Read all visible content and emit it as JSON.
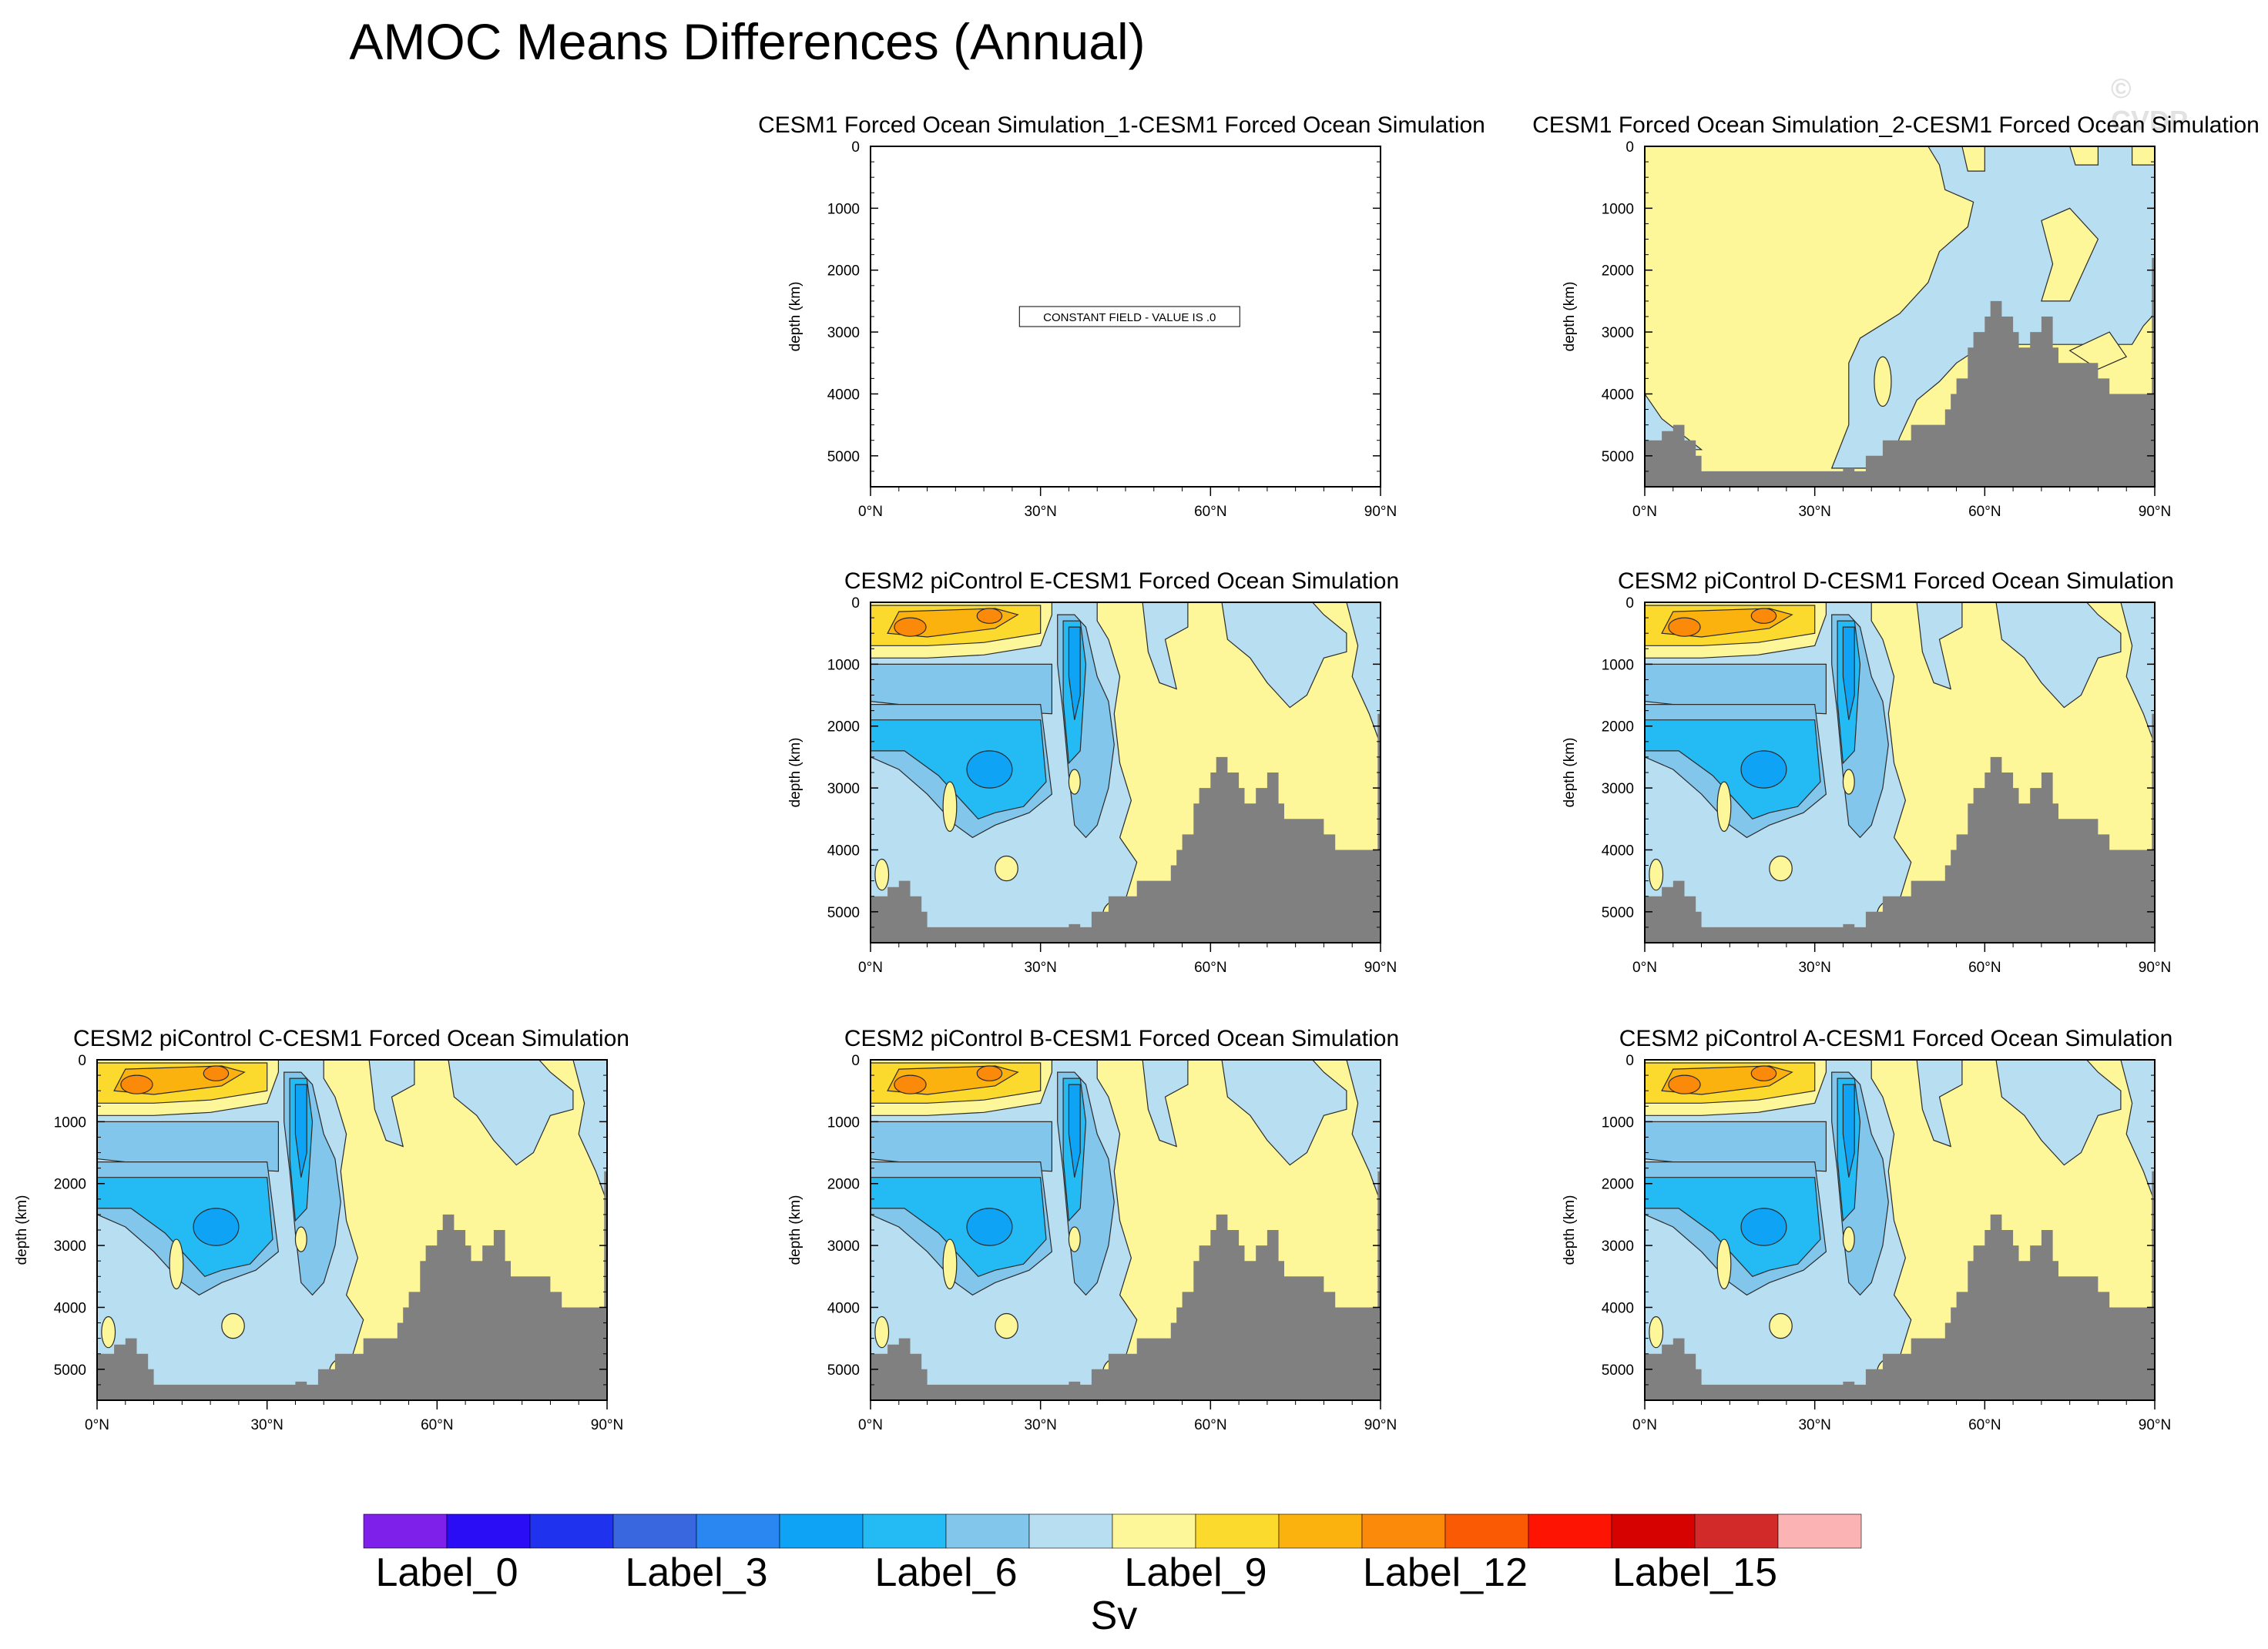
{
  "figure": {
    "title": "AMOC Means Differences (Annual)",
    "watermark": "© CVDP"
  },
  "chart_data": [
    {
      "type": "heatmap",
      "title": "CESM1 Forced Ocean Simulation_1-CESM1 Forced Ocean Simulation",
      "xlabel": "",
      "ylabel": "depth (km)",
      "xticks": [
        "0°N",
        "30°N",
        "60°N",
        "90°N"
      ],
      "yticks": [
        "0",
        "1000",
        "2000",
        "3000",
        "4000",
        "5000"
      ],
      "xlim": [
        0,
        90
      ],
      "ylim": [
        5500,
        0
      ],
      "constant_field": true,
      "annotation": "CONSTANT FIELD - VALUE IS .0"
    },
    {
      "type": "heatmap",
      "title": "CESM1 Forced Ocean Simulation_2-CESM1 Forced Ocean Simulation",
      "xlabel": "",
      "ylabel": "depth (km)",
      "xticks": [
        "0°N",
        "30°N",
        "60°N",
        "90°N"
      ],
      "yticks": [
        "0",
        "1000",
        "2000",
        "3000",
        "4000",
        "5000"
      ],
      "xlim": [
        0,
        90
      ],
      "ylim": [
        5500,
        0
      ],
      "pattern": "small-diff"
    },
    {
      "type": "heatmap",
      "title": "CESM2 piControl E-CESM1 Forced Ocean Simulation",
      "xlabel": "",
      "ylabel": "depth (km)",
      "xticks": [
        "0°N",
        "30°N",
        "60°N",
        "90°N"
      ],
      "yticks": [
        "0",
        "1000",
        "2000",
        "3000",
        "4000",
        "5000"
      ],
      "xlim": [
        0,
        90
      ],
      "ylim": [
        5500,
        0
      ],
      "pattern": "cesm2"
    },
    {
      "type": "heatmap",
      "title": "CESM2 piControl D-CESM1 Forced Ocean Simulation",
      "xlabel": "",
      "ylabel": "depth (km)",
      "xticks": [
        "0°N",
        "30°N",
        "60°N",
        "90°N"
      ],
      "yticks": [
        "0",
        "1000",
        "2000",
        "3000",
        "4000",
        "5000"
      ],
      "xlim": [
        0,
        90
      ],
      "ylim": [
        5500,
        0
      ],
      "pattern": "cesm2"
    },
    {
      "type": "heatmap",
      "title": "CESM2 piControl C-CESM1 Forced Ocean Simulation",
      "xlabel": "",
      "ylabel": "depth (km)",
      "xticks": [
        "0°N",
        "30°N",
        "60°N",
        "90°N"
      ],
      "yticks": [
        "0",
        "1000",
        "2000",
        "3000",
        "4000",
        "5000"
      ],
      "xlim": [
        0,
        90
      ],
      "ylim": [
        5500,
        0
      ],
      "pattern": "cesm2"
    },
    {
      "type": "heatmap",
      "title": "CESM2 piControl B-CESM1 Forced Ocean Simulation",
      "xlabel": "",
      "ylabel": "depth (km)",
      "xticks": [
        "0°N",
        "30°N",
        "60°N",
        "90°N"
      ],
      "yticks": [
        "0",
        "1000",
        "2000",
        "3000",
        "4000",
        "5000"
      ],
      "xlim": [
        0,
        90
      ],
      "ylim": [
        5500,
        0
      ],
      "pattern": "cesm2"
    },
    {
      "type": "heatmap",
      "title": "CESM2 piControl A-CESM1 Forced Ocean Simulation",
      "xlabel": "",
      "ylabel": "depth (km)",
      "xticks": [
        "0°N",
        "30°N",
        "60°N",
        "90°N"
      ],
      "yticks": [
        "0",
        "1000",
        "2000",
        "3000",
        "4000",
        "5000"
      ],
      "xlim": [
        0,
        90
      ],
      "ylim": [
        5500,
        0
      ],
      "pattern": "cesm2"
    }
  ],
  "colorbar": {
    "units": "Sv",
    "labels": [
      "Label_0",
      "Label_3",
      "Label_6",
      "Label_9",
      "Label_12",
      "Label_15"
    ],
    "colors": [
      "#7f1fea",
      "#2a0cf5",
      "#1f32ee",
      "#3867e0",
      "#2a86f1",
      "#0fa3f5",
      "#24bbf5",
      "#82c6ec",
      "#b8def2",
      "#fef79a",
      "#fcd92d",
      "#fbb10e",
      "#fb8a0a",
      "#fa5a04",
      "#fd1402",
      "#d60101",
      "#d12a28",
      "#fbb3b3"
    ]
  },
  "colors": {
    "land": "#808080",
    "contour_line": "#2b2b2b"
  }
}
